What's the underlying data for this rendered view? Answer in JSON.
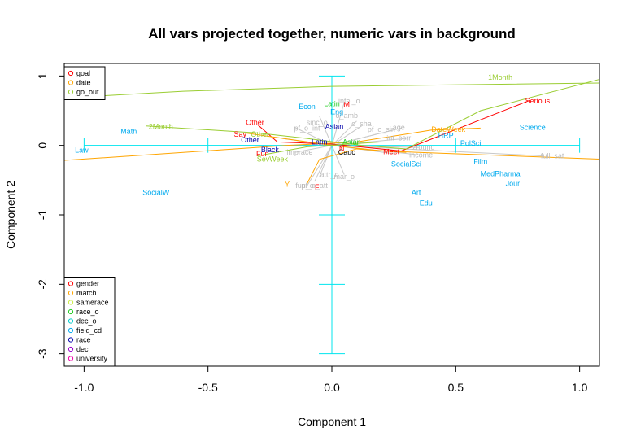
{
  "chart_data": {
    "type": "scatter",
    "title": "All vars projected together, numeric vars in background",
    "xlabel": "Component 1",
    "ylabel": "Component 2",
    "xlim": [
      -1.08,
      1.08
    ],
    "ylim": [
      -3.18,
      1.18
    ],
    "x_ticks": [
      -1.0,
      -0.5,
      0.0,
      0.5,
      1.0
    ],
    "x_tick_labels": [
      "-1.0",
      "-0.5",
      "0.0",
      "0.5",
      "1.0"
    ],
    "y_ticks": [
      -3,
      -2,
      -1,
      0,
      1
    ],
    "y_tick_labels": [
      "-3",
      "-2",
      "-1",
      "0",
      "1"
    ],
    "legend_top": {
      "placement": "top-left",
      "items": [
        {
          "label": "goal",
          "color": "#ff0000"
        },
        {
          "label": "date",
          "color": "#ffa500"
        },
        {
          "label": "go_out",
          "color": "#9acd32"
        }
      ]
    },
    "legend_bottom": {
      "placement": "bottom-left",
      "items": [
        {
          "label": "gender",
          "color": "#ff0000"
        },
        {
          "label": "match",
          "color": "#ffa500"
        },
        {
          "label": "samerace",
          "color": "#ccee44"
        },
        {
          "label": "race_o",
          "color": "#22cc22"
        },
        {
          "label": "dec_o",
          "color": "#00cccc"
        },
        {
          "label": "field_cd",
          "color": "#00aaee"
        },
        {
          "label": "race",
          "color": "#0000aa"
        },
        {
          "label": "dec",
          "color": "#9900cc"
        },
        {
          "label": "university",
          "color": "#ee00aa"
        }
      ]
    },
    "crosshair": {
      "color": "#00e5ee",
      "h_from": -1.0,
      "h_to": 1.0,
      "v_from": -3.0,
      "v_to": 1.0,
      "h_ticks": [
        -0.5,
        0.5
      ],
      "v_ticks": [
        -2,
        -1
      ]
    },
    "polylines": [
      {
        "color": "#ff0000",
        "points": [
          [
            -0.3,
            0.3
          ],
          [
            -0.22,
            0.05
          ],
          [
            0.0,
            0.02
          ],
          [
            0.28,
            -0.08
          ],
          [
            0.8,
            0.65
          ]
        ]
      },
      {
        "color": "#ffa500",
        "points": [
          [
            -1.1,
            -0.22
          ],
          [
            -0.18,
            0.0
          ],
          [
            0.1,
            0.05
          ],
          [
            0.4,
            0.22
          ],
          [
            0.6,
            0.25
          ]
        ]
      },
      {
        "color": "#ffa500",
        "points": [
          [
            -0.35,
            0.18
          ],
          [
            0.0,
            0.0
          ],
          [
            0.2,
            -0.08
          ],
          [
            1.1,
            -0.2
          ]
        ]
      },
      {
        "color": "#ffa500",
        "points": [
          [
            -0.1,
            -0.55
          ],
          [
            -0.05,
            -0.2
          ],
          [
            0.1,
            -0.05
          ],
          [
            0.3,
            -0.1
          ]
        ]
      },
      {
        "color": "#9acd32",
        "points": [
          [
            -1.1,
            0.68
          ],
          [
            -0.6,
            0.78
          ],
          [
            0.0,
            0.85
          ],
          [
            1.1,
            0.9
          ]
        ]
      },
      {
        "color": "#9acd32",
        "points": [
          [
            -0.75,
            0.28
          ],
          [
            -0.3,
            0.18
          ],
          [
            -0.1,
            0.1
          ],
          [
            0.12,
            0.0
          ],
          [
            0.3,
            -0.05
          ],
          [
            0.6,
            0.5
          ],
          [
            1.1,
            0.97
          ]
        ]
      },
      {
        "color": "#9acd32",
        "points": [
          [
            -0.3,
            -0.15
          ],
          [
            -0.1,
            -0.02
          ],
          [
            0.2,
            0.05
          ]
        ]
      }
    ],
    "gray_segments": [
      [
        0.0,
        0.0,
        0.05,
        0.62
      ],
      [
        0.0,
        0.0,
        -0.05,
        0.42
      ],
      [
        0.0,
        0.0,
        0.1,
        0.35
      ],
      [
        0.0,
        0.0,
        -0.15,
        0.26
      ],
      [
        0.0,
        0.0,
        0.12,
        0.28
      ],
      [
        0.0,
        0.0,
        0.28,
        0.25
      ],
      [
        0.0,
        0.0,
        0.2,
        0.18
      ],
      [
        0.0,
        0.0,
        0.3,
        0.1
      ],
      [
        0.0,
        0.0,
        0.35,
        -0.03
      ],
      [
        0.0,
        0.0,
        0.36,
        -0.14
      ],
      [
        0.0,
        0.0,
        0.25,
        -0.12
      ],
      [
        0.0,
        0.0,
        0.85,
        -0.15
      ],
      [
        0.0,
        0.0,
        -0.2,
        0.1
      ],
      [
        0.0,
        0.0,
        -0.18,
        0.0
      ],
      [
        0.0,
        0.0,
        -0.15,
        -0.1
      ],
      [
        0.0,
        0.0,
        -0.05,
        -0.45
      ],
      [
        0.0,
        0.0,
        0.05,
        -0.42
      ],
      [
        0.0,
        0.0,
        -0.1,
        -0.58
      ],
      [
        0.0,
        0.0,
        -0.07,
        -0.52
      ]
    ],
    "labels": [
      {
        "text": "goal",
        "x": 0.0,
        "y": 0.0,
        "color": "none"
      },
      {
        "text": "1Month",
        "x": 0.68,
        "y": 0.98,
        "color": "#9acd32"
      },
      {
        "text": "Serious",
        "x": 0.83,
        "y": 0.64,
        "color": "#ff0000"
      },
      {
        "text": "Science",
        "x": 0.81,
        "y": 0.26,
        "color": "#00aaee"
      },
      {
        "text": "DateWeek",
        "x": 0.47,
        "y": 0.23,
        "color": "#ffa500"
      },
      {
        "text": "HRP",
        "x": 0.46,
        "y": 0.14,
        "color": "#00aaee"
      },
      {
        "text": "PolSci",
        "x": 0.56,
        "y": 0.03,
        "color": "#00aaee"
      },
      {
        "text": "Film",
        "x": 0.6,
        "y": -0.23,
        "color": "#00aaee"
      },
      {
        "text": "MedPharma",
        "x": 0.68,
        "y": -0.41,
        "color": "#00aaee"
      },
      {
        "text": "Jour",
        "x": 0.73,
        "y": -0.55,
        "color": "#00aaee"
      },
      {
        "text": "Art",
        "x": 0.34,
        "y": -0.68,
        "color": "#00aaee"
      },
      {
        "text": "Edu",
        "x": 0.38,
        "y": -0.83,
        "color": "#00aaee"
      },
      {
        "text": "SocialSci",
        "x": 0.3,
        "y": -0.27,
        "color": "#00aaee"
      },
      {
        "text": "Math",
        "x": -0.82,
        "y": 0.2,
        "color": "#00aaee"
      },
      {
        "text": "Law",
        "x": -1.01,
        "y": -0.07,
        "color": "#00aaee"
      },
      {
        "text": "SocialW",
        "x": -0.71,
        "y": -0.68,
        "color": "#00aaee"
      },
      {
        "text": "2Month",
        "x": -0.69,
        "y": 0.27,
        "color": "#9acd32"
      },
      {
        "text": "Econ",
        "x": -0.1,
        "y": 0.56,
        "color": "#00aaee"
      },
      {
        "text": "Latin",
        "x": 0.0,
        "y": 0.6,
        "color": "#22cc22"
      },
      {
        "text": "M",
        "x": 0.06,
        "y": 0.59,
        "color": "#ff0000"
      },
      {
        "text": "Eng",
        "x": 0.02,
        "y": 0.48,
        "color": "#00aaee"
      },
      {
        "text": "Asian",
        "x": 0.01,
        "y": 0.27,
        "color": "#0000aa"
      },
      {
        "text": "Other",
        "x": -0.31,
        "y": 0.33,
        "color": "#ff0000"
      },
      {
        "text": "Say",
        "x": -0.37,
        "y": 0.16,
        "color": "#ff0000"
      },
      {
        "text": "Other",
        "x": -0.29,
        "y": 0.16,
        "color": "#9acd32"
      },
      {
        "text": "Other",
        "x": -0.33,
        "y": 0.08,
        "color": "#0000aa"
      },
      {
        "text": "Black",
        "x": -0.25,
        "y": -0.06,
        "color": "#0000aa"
      },
      {
        "text": "Fun",
        "x": -0.28,
        "y": -0.12,
        "color": "#ff0000"
      },
      {
        "text": "SevWeek",
        "x": -0.24,
        "y": -0.2,
        "color": "#9acd32"
      },
      {
        "text": "Latin",
        "x": -0.05,
        "y": 0.05,
        "color": "#0000aa"
      },
      {
        "text": "Asian",
        "x": 0.08,
        "y": 0.05,
        "color": "#22cc22"
      },
      {
        "text": "Cauc",
        "x": 0.06,
        "y": -0.1,
        "color": "#000000"
      },
      {
        "text": "Y",
        "x": -0.18,
        "y": -0.56,
        "color": "#ffa500"
      },
      {
        "text": "F",
        "x": -0.06,
        "y": -0.6,
        "color": "#ff0000"
      },
      {
        "text": "N",
        "x": 0.04,
        "y": -0.05,
        "color": "#ff0000"
      },
      {
        "text": "Meet",
        "x": 0.24,
        "y": -0.09,
        "color": "#ff0000"
      },
      {
        "text": "intel_o",
        "x": 0.07,
        "y": 0.64,
        "color": "#bbbbbb"
      },
      {
        "text": "sinc_o",
        "x": -0.06,
        "y": 0.33,
        "color": "#bbbbbb"
      },
      {
        "text": "o_amb",
        "x": 0.06,
        "y": 0.43,
        "color": "#bbbbbb"
      },
      {
        "text": "o_sha",
        "x": 0.12,
        "y": 0.31,
        "color": "#bbbbbb"
      },
      {
        "text": "pf_o_int",
        "x": -0.1,
        "y": 0.25,
        "color": "#bbbbbb"
      },
      {
        "text": "pf_o_sin",
        "x": 0.2,
        "y": 0.23,
        "color": "#bbbbbb"
      },
      {
        "text": "age",
        "x": 0.27,
        "y": 0.26,
        "color": "#bbbbbb"
      },
      {
        "text": "int_corr",
        "x": 0.27,
        "y": 0.11,
        "color": "#bbbbbb"
      },
      {
        "text": "zround",
        "x": 0.37,
        "y": -0.03,
        "color": "#bbbbbb"
      },
      {
        "text": "income",
        "x": 0.36,
        "y": -0.14,
        "color": "#bbbbbb"
      },
      {
        "text": "imprace",
        "x": -0.13,
        "y": -0.1,
        "color": "#bbbbbb"
      },
      {
        "text": "attr_o",
        "x": -0.01,
        "y": -0.42,
        "color": "#bbbbbb"
      },
      {
        "text": "mar_o",
        "x": 0.05,
        "y": -0.45,
        "color": "#bbbbbb"
      },
      {
        "text": "fun_o",
        "x": -0.11,
        "y": -0.58,
        "color": "#bbbbbb"
      },
      {
        "text": "pf_o_att",
        "x": -0.07,
        "y": -0.58,
        "color": "#bbbbbb"
      },
      {
        "text": "full_sat",
        "x": 0.89,
        "y": -0.15,
        "color": "#bbbbbb"
      }
    ]
  }
}
